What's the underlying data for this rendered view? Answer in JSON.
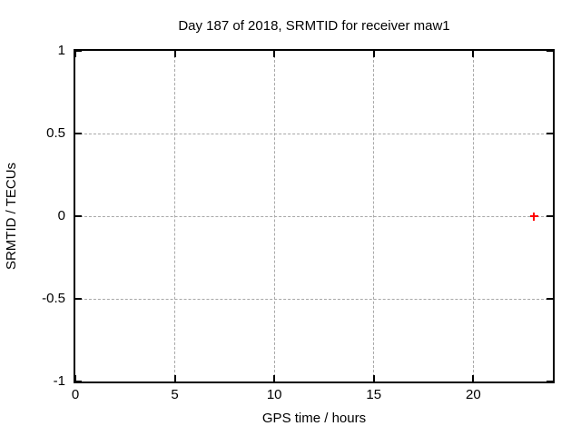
{
  "figure": {
    "background_color": "#ffffff",
    "text_color": "#000000"
  },
  "chart_data": {
    "type": "scatter",
    "title": "Day 187 of 2018, SRMTID for receiver maw1",
    "xlabel": "GPS time / hours",
    "ylabel": "SRMTID / TECUs",
    "xlim": [
      0,
      24
    ],
    "ylim": [
      -1,
      1
    ],
    "xticks": [
      {
        "v": 0,
        "label": "0"
      },
      {
        "v": 5,
        "label": "5"
      },
      {
        "v": 10,
        "label": "10"
      },
      {
        "v": 15,
        "label": "15"
      },
      {
        "v": 20,
        "label": "20"
      }
    ],
    "yticks": [
      {
        "v": -1,
        "label": "-1"
      },
      {
        "v": -0.5,
        "label": "-0.5"
      },
      {
        "v": 0,
        "label": "0"
      },
      {
        "v": 0.5,
        "label": "0.5"
      },
      {
        "v": 1,
        "label": "1"
      }
    ],
    "grid": true,
    "grid_color": "#a8a8a8",
    "border_color": "#000000",
    "tick_style": "inward-mirrored",
    "legend": "none",
    "series": [
      {
        "name": "SRMTID",
        "marker": "plus",
        "color": "#ff0000",
        "points": [
          {
            "x": 23.05,
            "y": 0.0
          }
        ]
      }
    ]
  }
}
